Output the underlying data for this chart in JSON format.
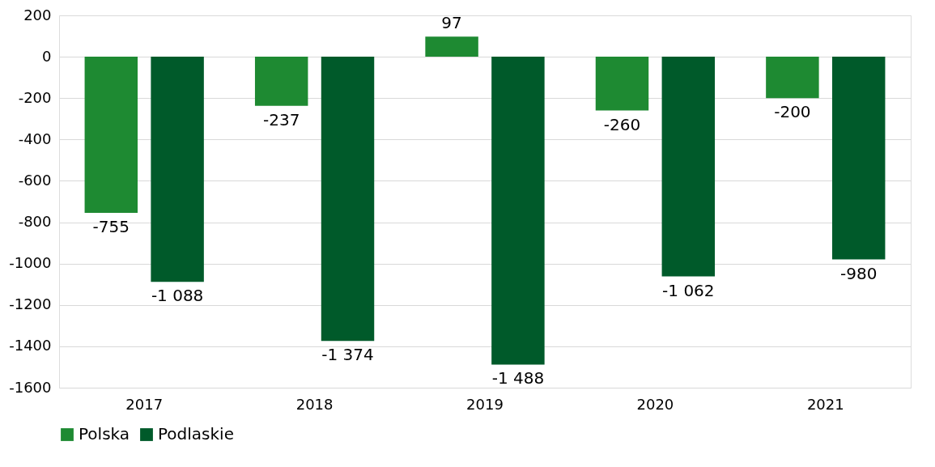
{
  "chart_data": {
    "type": "bar",
    "categories": [
      "2017",
      "2018",
      "2019",
      "2020",
      "2021"
    ],
    "series": [
      {
        "name": "Polska",
        "color": "#1e8a32",
        "values": [
          -755,
          -237,
          97,
          -260,
          -200
        ],
        "value_labels": [
          "-755",
          "-237",
          "97",
          "-260",
          "-200"
        ]
      },
      {
        "name": "Podlaskie",
        "color": "#005a2a",
        "values": [
          -1088,
          -1374,
          -1488,
          -1062,
          -980
        ],
        "value_labels": [
          "-1 088",
          "-1 374",
          "-1 488",
          "-1 062",
          "-980"
        ]
      }
    ],
    "ylim": [
      -1600,
      200
    ],
    "yticks": [
      -1600,
      -1400,
      -1200,
      -1000,
      -800,
      -600,
      -400,
      -200,
      0,
      200
    ],
    "grid": "y",
    "legend": "bottom"
  }
}
